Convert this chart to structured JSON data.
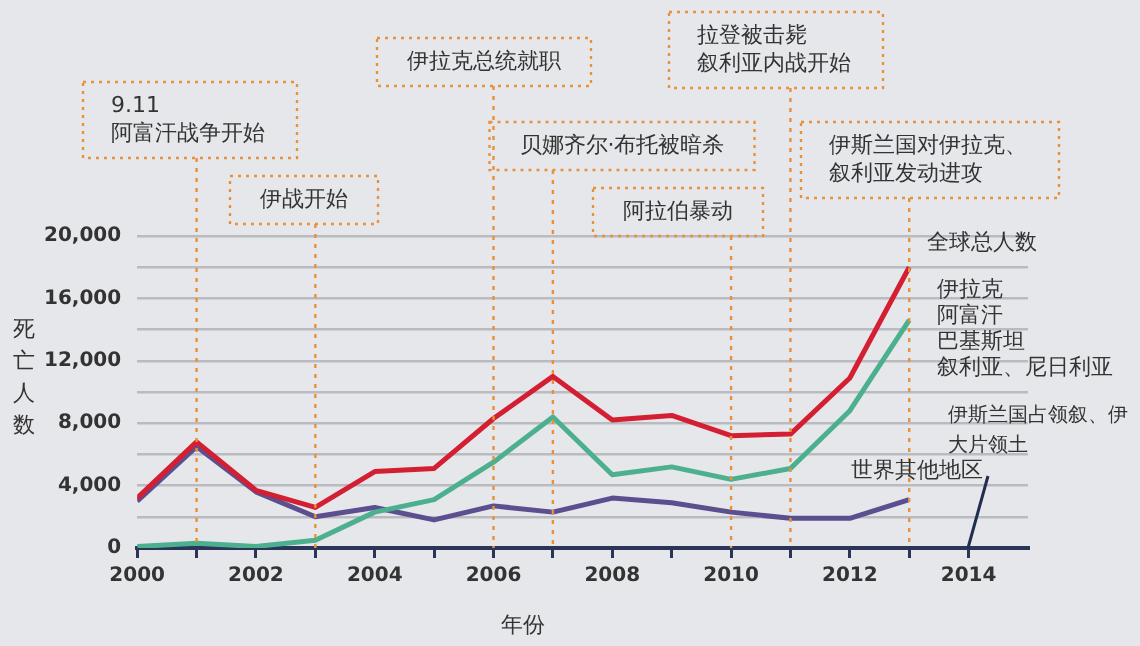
{
  "chart_data": {
    "type": "line",
    "xlabel": "年份",
    "ylabel": "死亡人数",
    "x": [
      2000,
      2001,
      2002,
      2003,
      2004,
      2005,
      2006,
      2007,
      2008,
      2009,
      2010,
      2011,
      2012,
      2013
    ],
    "series": [
      {
        "name": "全球总人数",
        "color": "#d41f32",
        "values": [
          3200,
          6800,
          3700,
          2600,
          4900,
          5100,
          8300,
          11000,
          8200,
          8500,
          7200,
          7300,
          10900,
          18000
        ]
      },
      {
        "name": "伊拉克阿富汗巴基斯坦叙利亚、尼日利亚",
        "color": "#4cb08f",
        "values": [
          100,
          300,
          100,
          500,
          2300,
          3100,
          5500,
          8400,
          4700,
          5200,
          4400,
          5100,
          8800,
          14600
        ]
      },
      {
        "name": "世界其他地区",
        "color": "#5b4f8f",
        "values": [
          3000,
          6500,
          3600,
          2000,
          2600,
          1800,
          2700,
          2300,
          3200,
          2900,
          2300,
          1900,
          1900,
          3100
        ]
      }
    ],
    "xlim": [
      2000,
      2015
    ],
    "xticks": [
      2000,
      {
        "value": 2001,
        "label": null
      },
      2002,
      {
        "value": 2003,
        "label": null
      },
      2004,
      {
        "value": 2005,
        "label": null
      },
      2006,
      {
        "value": 2007,
        "label": null
      },
      2008,
      {
        "value": 2009,
        "label": null
      },
      2010,
      {
        "value": 2011,
        "label": null
      },
      2012,
      {
        "value": 2013,
        "label": null
      },
      2014
    ],
    "ylim": [
      0,
      20000
    ],
    "yticks": [
      0,
      {
        "value": 2000,
        "label": null
      },
      {
        "value": 4000,
        "label": "4,000"
      },
      {
        "value": 6000,
        "label": null
      },
      {
        "value": 8000,
        "label": "8,000"
      },
      {
        "value": 10000,
        "label": null
      },
      {
        "value": 12000,
        "label": "12,000"
      },
      {
        "value": 14000,
        "label": null
      },
      {
        "value": 16000,
        "label": "16,000"
      },
      {
        "value": 18000,
        "label": null
      },
      {
        "value": 20000,
        "label": "20,000"
      }
    ],
    "grid": "y",
    "legend": false,
    "marker": "none",
    "line_style": "solid",
    "ref_lines": [
      {
        "axis": "x",
        "value": 2001,
        "label": "9.11\n阿富汗战争开始",
        "color": "#e8913a",
        "line_style": "dotted"
      },
      {
        "axis": "x",
        "value": 2003,
        "label": "伊战开始",
        "color": "#e8913a",
        "line_style": "dotted"
      },
      {
        "axis": "x",
        "value": 2006,
        "label": "伊拉克总统就职",
        "color": "#e8913a",
        "line_style": "dotted"
      },
      {
        "axis": "x",
        "value": 2007,
        "label": "贝娜齐尔·布托被暗杀",
        "color": "#e8913a",
        "line_style": "dotted"
      },
      {
        "axis": "x",
        "value": 2010,
        "label": "阿拉伯暴动",
        "color": "#e8913a",
        "line_style": "dotted"
      },
      {
        "axis": "x",
        "value": 2011,
        "label": "拉登被击毙叙利亚内战开始",
        "color": "#e8913a",
        "line_style": "dotted"
      },
      {
        "axis": "x",
        "value": 2013,
        "label": "伊斯兰国对伊拉克、叙利亚发动进攻",
        "color": "#e8913a",
        "line_style": "dotted"
      }
    ],
    "annotations": [
      "伊斯兰国占领叙、伊大片领土"
    ]
  }
}
